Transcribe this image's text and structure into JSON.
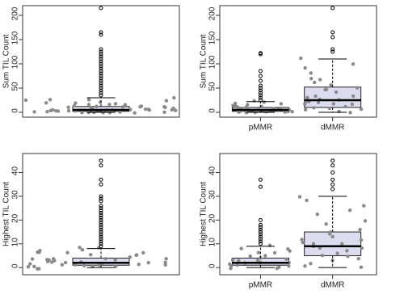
{
  "chart_data": [
    {
      "type": "box",
      "ylabel": "Sum TIL Count",
      "categories": [
        null
      ],
      "ylim": [
        -10,
        220
      ],
      "yticks": [
        0,
        50,
        100,
        150,
        200
      ],
      "box_color": "#dcdcf0",
      "point_color": "#8a8a8a",
      "boxes": [
        {
          "whislo": 0,
          "q1": 2,
          "med": 5,
          "q3": 12,
          "whishi": 30,
          "fliers": [
            215,
            165,
            160,
            130,
            125,
            120,
            115,
            110,
            105,
            100,
            95,
            90,
            85,
            80,
            75,
            70,
            65,
            60,
            55,
            50,
            45,
            40,
            35
          ],
          "points": [
            0,
            0,
            1,
            1,
            2,
            2,
            3,
            3,
            4,
            4,
            5,
            5,
            6,
            7,
            8,
            9,
            10,
            11,
            12,
            13,
            14,
            15,
            16,
            18,
            20,
            22,
            24,
            26,
            28,
            30,
            0,
            1,
            2,
            3,
            5,
            7,
            9,
            12,
            15,
            20,
            25,
            2,
            4,
            6,
            8,
            10,
            1,
            3
          ]
        }
      ]
    },
    {
      "type": "box",
      "ylabel": "Sum TIL Count",
      "categories": [
        "pMMR",
        "dMMR"
      ],
      "ylim": [
        -10,
        220
      ],
      "yticks": [
        0,
        50,
        100,
        150,
        200
      ],
      "box_color": "#dcdcf0",
      "point_color": "#8a8a8a",
      "boxes": [
        {
          "whislo": 0,
          "q1": 2,
          "med": 5,
          "q3": 10,
          "whishi": 22,
          "fliers": [
            122,
            120,
            85,
            75,
            65,
            55,
            50,
            45,
            40,
            35,
            30,
            25
          ],
          "points": [
            0,
            0,
            1,
            1,
            2,
            2,
            3,
            3,
            4,
            5,
            5,
            6,
            7,
            8,
            9,
            10,
            11,
            12,
            14,
            16,
            18,
            20,
            22,
            1,
            3,
            4,
            6,
            8,
            2,
            15
          ]
        },
        {
          "whislo": 0,
          "q1": 10,
          "med": 25,
          "q3": 52,
          "whishi": 110,
          "fliers": [
            215,
            165,
            155,
            130,
            125
          ],
          "points": [
            0,
            2,
            5,
            8,
            10,
            12,
            15,
            18,
            20,
            22,
            25,
            28,
            30,
            35,
            40,
            45,
            50,
            55,
            60,
            65,
            70,
            80,
            90,
            100,
            110,
            5,
            15,
            25,
            35,
            48
          ]
        }
      ]
    },
    {
      "type": "box",
      "ylabel": "Highest TIL Count",
      "categories": [
        null
      ],
      "ylim": [
        -3,
        48
      ],
      "yticks": [
        0,
        10,
        20,
        30,
        40
      ],
      "box_color": "#dcdcf0",
      "point_color": "#8a8a8a",
      "boxes": [
        {
          "whislo": 0,
          "q1": 1,
          "med": 2,
          "q3": 4,
          "whishi": 8,
          "fliers": [
            45,
            43,
            37,
            35,
            30,
            29,
            28,
            26,
            25,
            24,
            23,
            22,
            21,
            20,
            19,
            18,
            17,
            16,
            15,
            14,
            13,
            12,
            11,
            10,
            9
          ],
          "points": [
            0,
            0,
            0,
            1,
            1,
            1,
            1,
            2,
            2,
            2,
            2,
            3,
            3,
            3,
            4,
            4,
            4,
            5,
            5,
            6,
            6,
            7,
            7,
            8,
            8,
            0,
            1,
            2,
            3,
            4,
            5,
            6,
            1,
            2,
            3,
            0,
            1,
            2,
            4,
            6
          ]
        }
      ]
    },
    {
      "type": "box",
      "ylabel": "Highest TIL Count",
      "categories": [
        "pMMR",
        "dMMR"
      ],
      "ylim": [
        -3,
        48
      ],
      "yticks": [
        0,
        10,
        20,
        30,
        40
      ],
      "box_color": "#dcdcf0",
      "point_color": "#8a8a8a",
      "boxes": [
        {
          "whislo": 0,
          "q1": 1,
          "med": 2,
          "q3": 4,
          "whishi": 9,
          "fliers": [
            37,
            34,
            20,
            18,
            17,
            16,
            15,
            14,
            13,
            12,
            11,
            10
          ],
          "points": [
            0,
            0,
            1,
            1,
            1,
            2,
            2,
            2,
            3,
            3,
            4,
            4,
            5,
            5,
            6,
            7,
            8,
            9,
            0,
            1,
            2,
            3,
            6,
            8
          ]
        },
        {
          "whislo": 0,
          "q1": 5,
          "med": 9,
          "q3": 15,
          "whishi": 30,
          "fliers": [
            45,
            43,
            40,
            37,
            35,
            33
          ],
          "points": [
            0,
            1,
            2,
            3,
            4,
            5,
            6,
            7,
            8,
            9,
            10,
            11,
            12,
            13,
            14,
            15,
            16,
            18,
            20,
            22,
            24,
            26,
            28,
            30,
            5,
            8,
            10,
            12
          ]
        }
      ]
    }
  ]
}
